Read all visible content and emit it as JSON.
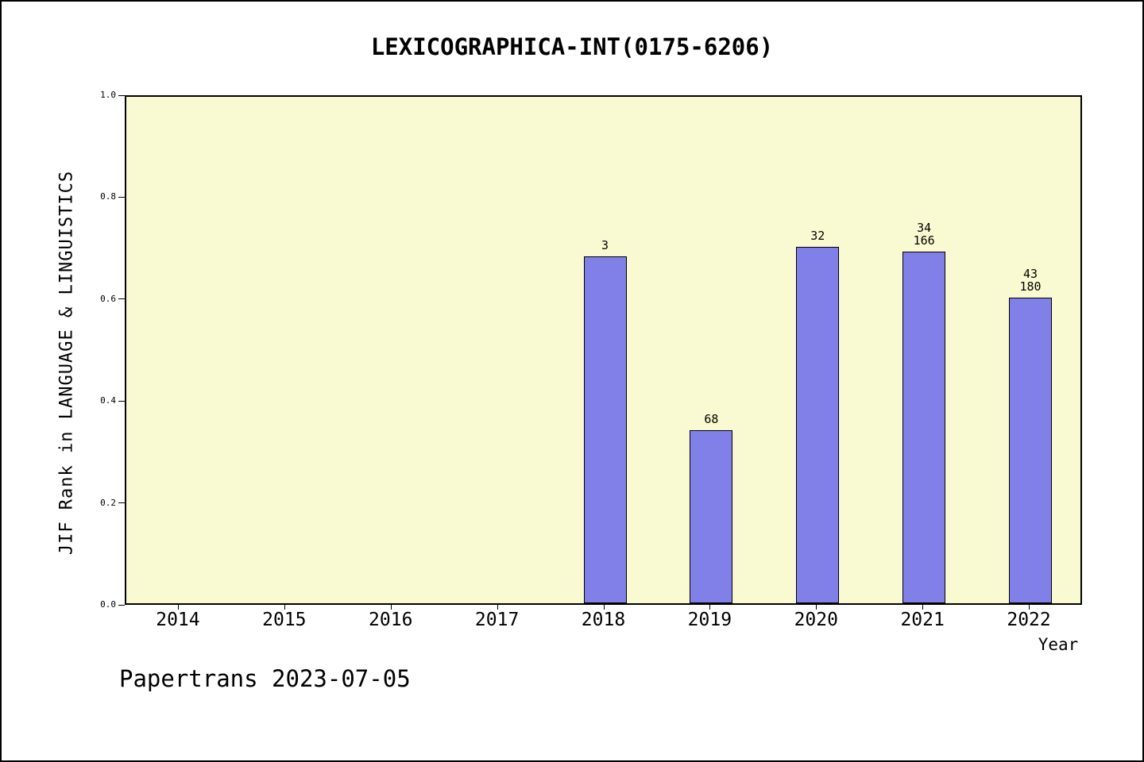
{
  "chart_data": {
    "type": "bar",
    "title": "LEXICOGRAPHICA-INT(0175-6206)",
    "xlabel": "Year",
    "ylabel": "JIF Rank in LANGUAGE & LINGUISTICS",
    "ylim": [
      0.0,
      1.0
    ],
    "ytick_labels": [
      "0.0",
      "0.2",
      "0.4",
      "0.6",
      "0.8",
      "1.0"
    ],
    "categories": [
      "2014",
      "2015",
      "2016",
      "2017",
      "2018",
      "2019",
      "2020",
      "2021",
      "2022"
    ],
    "values": [
      null,
      null,
      null,
      null,
      0.68,
      0.34,
      0.7,
      0.69,
      0.6
    ],
    "bar_labels": [
      [],
      [],
      [],
      [],
      [
        "3"
      ],
      [
        "68"
      ],
      [
        "32"
      ],
      [
        "34",
        "166"
      ],
      [
        "43",
        "180"
      ]
    ],
    "bar_color": "#8080e8",
    "bar_border_color": "#000000",
    "plot_background": "#fafad2",
    "grid": false,
    "legend": null
  },
  "footer": {
    "text": "Papertrans 2023-07-05"
  }
}
